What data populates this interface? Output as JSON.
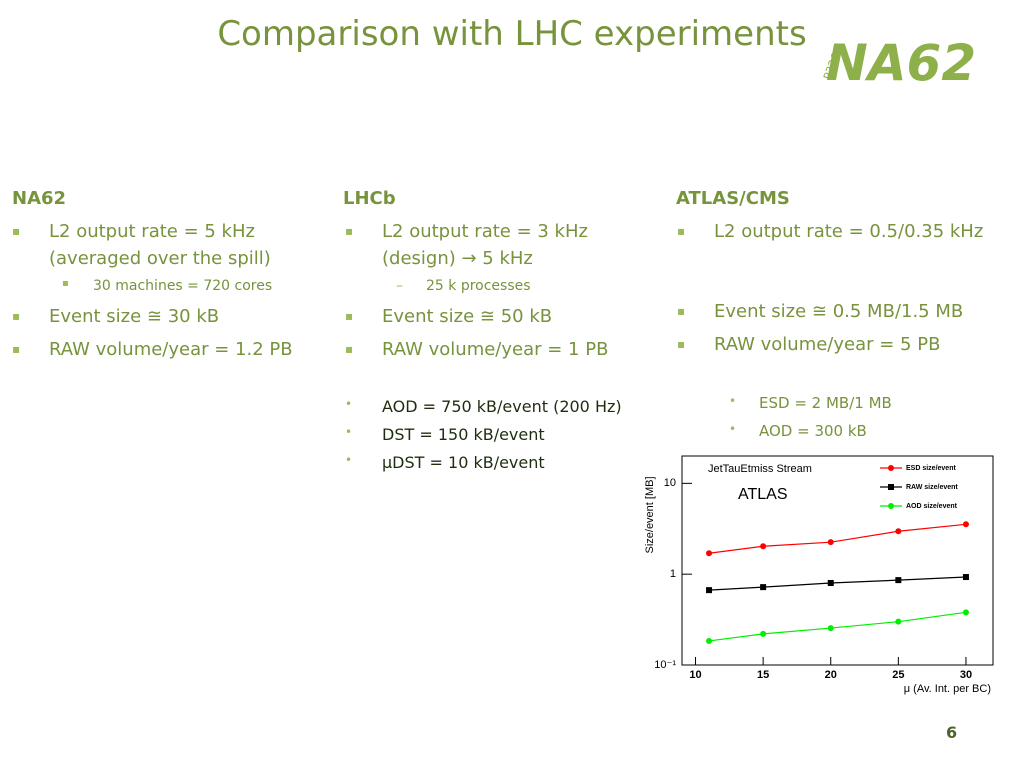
{
  "header": {
    "title": "Comparison with LHC experiments"
  },
  "logo": {
    "text": "NA62",
    "subtext": "P326"
  },
  "columns": [
    {
      "heading": "NA62",
      "items": [
        "L2 output rate = 5 kHz (averaged over the spill)",
        "30 machines = 720 cores",
        "Event size ≅ 30 kB",
        "RAW volume/year = 1.2 PB"
      ]
    },
    {
      "heading": "LHCb",
      "items": [
        "L2 output rate = 3 kHz (design) → 5 kHz",
        "25 k processes",
        "Event size ≅ 50 kB",
        "RAW volume/year = 1 PB",
        "AOD = 750 kB/event (200 Hz)",
        "DST = 150 kB/event",
        "μDST = 10 kB/event"
      ]
    },
    {
      "heading": "ATLAS/CMS",
      "items": [
        "L2 output rate = 0.5/0.35 kHz",
        "Event size ≅ 0.5 MB/1.5 MB",
        "RAW volume/year = 5 PB",
        "ESD =  2 MB/1 MB",
        "AOD = 300 kB"
      ]
    }
  ],
  "chart": {
    "type": "line",
    "title": "JetTauEtmiss Stream",
    "annotation": "ATLAS",
    "y_label": "Size/event [MB]",
    "x_label": "μ (Av. Int. per BC)",
    "log_scale_y": true,
    "legend": "top-right",
    "x": [
      11,
      15,
      20,
      25,
      30
    ],
    "xlim": [
      9,
      32
    ],
    "xticks": [
      10,
      15,
      20,
      25,
      30
    ],
    "ylim": [
      0.1,
      20
    ],
    "yticks": [
      {
        "value": 0.1,
        "label": "10⁻¹"
      },
      1,
      10
    ],
    "series": [
      {
        "name": "ESD size/event",
        "color": "#ff0000",
        "marker": "circle",
        "values": [
          1.7,
          2.03,
          2.25,
          2.97,
          3.54
        ]
      },
      {
        "name": "RAW size/event",
        "color": "#000000",
        "marker": "square",
        "values": [
          0.667,
          0.72,
          0.8,
          0.86,
          0.93
        ]
      },
      {
        "name": "AOD size/event",
        "color": "#00ee00",
        "marker": "circle",
        "values": [
          0.184,
          0.22,
          0.255,
          0.3,
          0.38
        ]
      }
    ]
  },
  "footer": {
    "page_number": "6"
  }
}
